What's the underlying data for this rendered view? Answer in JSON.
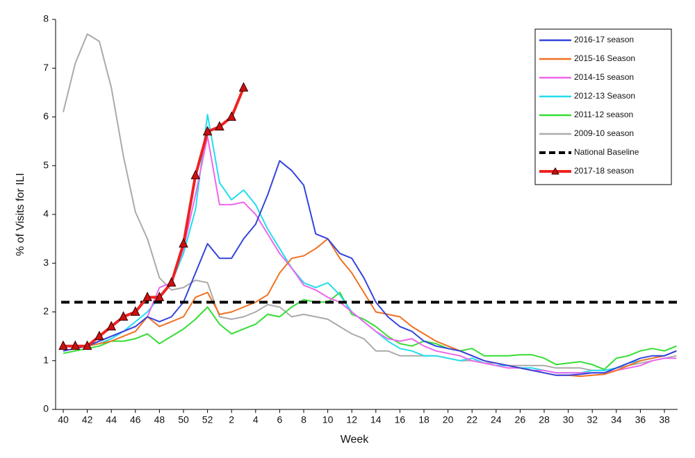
{
  "chart_data": {
    "type": "line",
    "x_label": "Week",
    "y_label": "% of Visits for ILI",
    "categories": [
      "40",
      null,
      "42",
      null,
      "44",
      null,
      "46",
      null,
      "48",
      null,
      "50",
      null,
      "52",
      null,
      "2",
      null,
      "4",
      null,
      "6",
      null,
      "8",
      null,
      "10",
      null,
      "12",
      null,
      "14",
      null,
      "16",
      null,
      "18",
      null,
      "20",
      null,
      "22",
      null,
      "24",
      null,
      "26",
      null,
      "28",
      null,
      "30",
      null,
      "32",
      null,
      "34",
      null,
      "36",
      null,
      "38",
      null
    ],
    "ylim": [
      0,
      8
    ],
    "yticks": [
      0,
      1,
      2,
      3,
      4,
      5,
      6,
      7,
      8
    ],
    "legend": "upper right",
    "baseline": {
      "name": "National Baseline",
      "value": 2.2,
      "color": "#000000"
    },
    "series": [
      {
        "name": "2016-17 season",
        "color": "#3344dd",
        "values": [
          1.2,
          1.25,
          1.3,
          1.4,
          1.5,
          1.6,
          1.7,
          1.9,
          1.8,
          1.9,
          2.2,
          2.8,
          3.4,
          3.1,
          3.1,
          3.5,
          3.8,
          4.4,
          5.1,
          4.9,
          4.6,
          3.6,
          3.5,
          3.2,
          3.1,
          2.7,
          2.2,
          1.9,
          1.7,
          1.6,
          1.4,
          1.3,
          1.25,
          1.2,
          1.1,
          1.0,
          0.95,
          0.9,
          0.85,
          0.8,
          0.75,
          0.7,
          0.7,
          0.72,
          0.75,
          0.75,
          0.85,
          0.95,
          1.05,
          1.1,
          1.1,
          1.2
        ]
      },
      {
        "name": "2015-16 Season",
        "color": "#f07020",
        "values": [
          1.2,
          1.25,
          1.3,
          1.35,
          1.4,
          1.5,
          1.6,
          1.9,
          1.7,
          1.8,
          1.9,
          2.3,
          2.4,
          1.95,
          2.0,
          2.1,
          2.2,
          2.35,
          2.8,
          3.1,
          3.15,
          3.3,
          3.5,
          3.1,
          2.8,
          2.4,
          2.0,
          1.95,
          1.9,
          1.7,
          1.55,
          1.4,
          1.3,
          1.2,
          1.1,
          1.0,
          0.95,
          0.9,
          0.85,
          0.8,
          0.75,
          0.7,
          0.7,
          0.68,
          0.7,
          0.72,
          0.8,
          0.9,
          1.0,
          1.05,
          1.1,
          1.2
        ]
      },
      {
        "name": "2014-15 season",
        "color": "#ee66ee",
        "values": [
          1.2,
          1.25,
          1.3,
          1.4,
          1.5,
          1.6,
          1.7,
          1.9,
          2.5,
          2.6,
          3.3,
          4.4,
          5.6,
          4.2,
          4.2,
          4.25,
          4.0,
          3.6,
          3.2,
          2.9,
          2.55,
          2.45,
          2.3,
          2.2,
          2.0,
          1.8,
          1.6,
          1.45,
          1.4,
          1.45,
          1.3,
          1.2,
          1.15,
          1.1,
          1.0,
          0.95,
          0.9,
          0.85,
          0.85,
          0.8,
          0.8,
          0.75,
          0.75,
          0.75,
          0.75,
          0.75,
          0.8,
          0.85,
          0.9,
          1.0,
          1.05,
          1.05
        ]
      },
      {
        "name": "2012-13 Season",
        "color": "#22ddee",
        "values": [
          1.2,
          1.25,
          1.3,
          1.35,
          1.45,
          1.6,
          1.8,
          2.0,
          2.3,
          2.6,
          3.2,
          4.1,
          6.05,
          4.65,
          4.3,
          4.5,
          4.2,
          3.7,
          3.3,
          2.9,
          2.6,
          2.5,
          2.6,
          2.35,
          2.0,
          1.8,
          1.6,
          1.4,
          1.25,
          1.2,
          1.1,
          1.1,
          1.05,
          1.0,
          1.05,
          0.95,
          0.9,
          0.9,
          0.85,
          0.85,
          0.8,
          0.75,
          0.75,
          0.75,
          0.8,
          0.8,
          0.85,
          0.95,
          1.0,
          1.05,
          1.1,
          1.2
        ]
      },
      {
        "name": "2011-12 season",
        "color": "#33dd33",
        "values": [
          1.15,
          1.2,
          1.25,
          1.3,
          1.4,
          1.4,
          1.45,
          1.55,
          1.35,
          1.5,
          1.65,
          1.85,
          2.1,
          1.75,
          1.55,
          1.65,
          1.75,
          1.95,
          1.9,
          2.1,
          2.25,
          2.2,
          2.2,
          2.4,
          1.95,
          1.85,
          1.7,
          1.5,
          1.35,
          1.3,
          1.4,
          1.35,
          1.25,
          1.2,
          1.25,
          1.1,
          1.1,
          1.1,
          1.12,
          1.12,
          1.05,
          0.92,
          0.95,
          0.98,
          0.92,
          0.82,
          1.05,
          1.1,
          1.2,
          1.25,
          1.2,
          1.3
        ]
      },
      {
        "name": "2009-10 season",
        "color": "#aaaaaa",
        "values": [
          6.1,
          7.1,
          7.7,
          7.55,
          6.6,
          5.2,
          4.05,
          3.5,
          2.7,
          2.45,
          2.5,
          2.65,
          2.6,
          1.9,
          1.85,
          1.9,
          2.0,
          2.15,
          2.1,
          1.9,
          1.95,
          1.9,
          1.85,
          1.7,
          1.55,
          1.45,
          1.2,
          1.2,
          1.1,
          1.1,
          1.1,
          1.1,
          1.05,
          1.0,
          1.0,
          0.95,
          0.95,
          0.9,
          0.9,
          0.9,
          0.9,
          0.85,
          0.85,
          0.85,
          0.8,
          0.8,
          0.85,
          0.9,
          0.95,
          1.0,
          1.05,
          1.1
        ]
      },
      {
        "name": "2017-18 season",
        "color": "#ee2222",
        "marker": "triangle",
        "values": [
          1.3,
          1.3,
          1.3,
          1.5,
          1.7,
          1.9,
          2.0,
          2.3,
          2.3,
          2.6,
          3.4,
          4.8,
          5.7,
          5.8,
          6.0,
          6.6,
          null,
          null,
          null,
          null,
          null,
          null,
          null,
          null,
          null,
          null,
          null,
          null,
          null,
          null,
          null,
          null,
          null,
          null,
          null,
          null,
          null,
          null,
          null,
          null,
          null,
          null,
          null,
          null,
          null,
          null,
          null,
          null,
          null,
          null,
          null,
          null
        ]
      }
    ]
  }
}
